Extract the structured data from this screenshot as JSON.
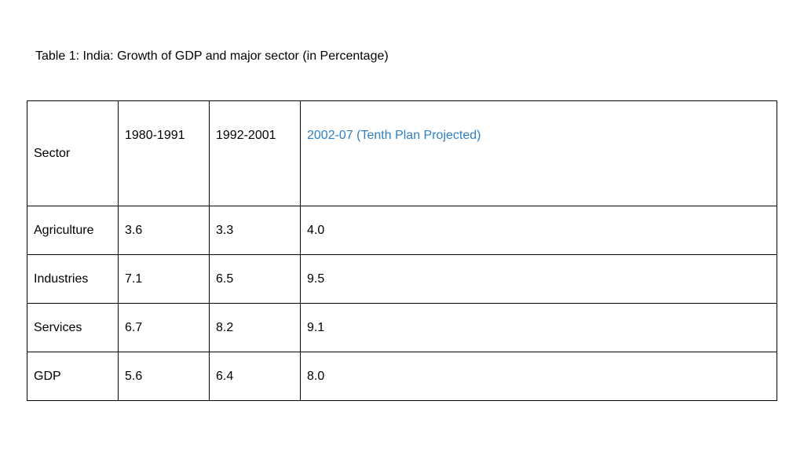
{
  "caption": "Table 1: India: Growth of GDP and major sector (in Percentage)",
  "colors": {
    "text": "#000000",
    "accent": "#2e7fbf",
    "border": "#000000"
  },
  "table": {
    "headers": [
      "Sector",
      "1980-1991",
      "1992-2001",
      "2002-07 (Tenth Plan Projected)"
    ],
    "rows": [
      [
        "Agriculture",
        "3.6",
        "3.3",
        "4.0"
      ],
      [
        "Industries",
        "7.1",
        "6.5",
        "9.5"
      ],
      [
        "Services",
        "6.7",
        "8.2",
        "9.1"
      ],
      [
        "GDP",
        "5.6",
        "6.4",
        "8.0"
      ]
    ]
  }
}
